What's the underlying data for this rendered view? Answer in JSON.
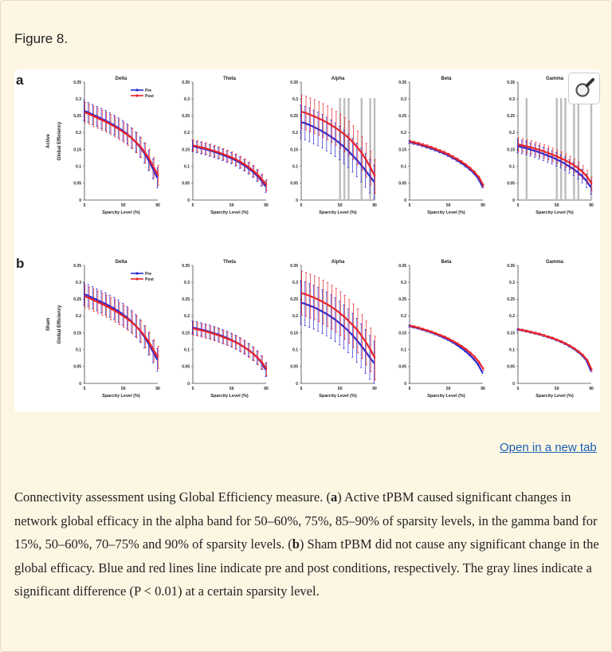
{
  "figure_label": "Figure 8.",
  "open_link": "Open in a new tab",
  "caption": {
    "s1": "Connectivity assessment using Global Efficiency measure. (",
    "a": "a",
    "s2": ") Active tPBM caused significant changes in network global efficacy in the alpha band for 50–60%, 75%, 85–90% of sparsity levels, in the gamma band for 15%, 50–60%, 70–75% and 90% of sparsity levels. (",
    "b": "b",
    "s3": ") Sham tPBM did not cause any significant change in the global efficacy. Blue and red lines line indicate pre and post conditions, respectively. The gray lines indicate a significant difference (P < 0.01) at a certain sparsity level."
  },
  "colors": {
    "pre": "#2b2bd4",
    "post": "#e8242a",
    "sig": "#bdbdbd"
  },
  "zoom_icon": "magnifier-icon",
  "chart_data": {
    "type": "line",
    "rows": [
      {
        "panel_label": "a",
        "row_label": "Active"
      },
      {
        "panel_label": "b",
        "row_label": "Sham"
      }
    ],
    "bands": [
      "Delta",
      "Theta",
      "Alpha",
      "Beta",
      "Gamma"
    ],
    "xlabel": "Sparcity Level (%)",
    "ylabel": "Global Efficiency",
    "x": [
      5,
      10,
      15,
      20,
      25,
      30,
      35,
      40,
      45,
      50,
      55,
      60,
      65,
      70,
      75,
      80,
      85,
      90
    ],
    "x_ticks": [
      "5",
      "50",
      "90"
    ],
    "ylim": [
      0,
      0.35
    ],
    "y_ticks": [
      "0",
      "0.05",
      "0.1",
      "0.15",
      "0.2",
      "0.25",
      "0.3",
      "0.35"
    ],
    "legend": [
      "Pre",
      "Post"
    ],
    "panels": [
      {
        "row": 0,
        "band": 0,
        "show_legend": true,
        "sig_x": [],
        "pre": [
          0.265,
          0.26,
          0.254,
          0.248,
          0.242,
          0.236,
          0.229,
          0.222,
          0.214,
          0.206,
          0.196,
          0.185,
          0.172,
          0.157,
          0.139,
          0.117,
          0.092,
          0.066
        ],
        "post": [
          0.26,
          0.255,
          0.249,
          0.243,
          0.237,
          0.231,
          0.224,
          0.217,
          0.209,
          0.201,
          0.192,
          0.182,
          0.17,
          0.156,
          0.14,
          0.12,
          0.096,
          0.073
        ],
        "err": 0.03
      },
      {
        "row": 0,
        "band": 1,
        "show_legend": false,
        "sig_x": [],
        "pre": [
          0.16,
          0.157,
          0.154,
          0.151,
          0.147,
          0.143,
          0.139,
          0.134,
          0.129,
          0.124,
          0.118,
          0.111,
          0.103,
          0.094,
          0.084,
          0.072,
          0.058,
          0.04
        ],
        "post": [
          0.162,
          0.159,
          0.156,
          0.153,
          0.149,
          0.145,
          0.141,
          0.136,
          0.131,
          0.126,
          0.12,
          0.113,
          0.105,
          0.096,
          0.086,
          0.074,
          0.06,
          0.044
        ],
        "err": 0.017
      },
      {
        "row": 0,
        "band": 2,
        "show_legend": false,
        "sig_x": [
          50,
          55,
          60,
          75,
          85,
          90
        ],
        "pre": [
          0.232,
          0.228,
          0.223,
          0.217,
          0.211,
          0.204,
          0.196,
          0.188,
          0.179,
          0.169,
          0.158,
          0.146,
          0.133,
          0.119,
          0.104,
          0.088,
          0.071,
          0.054
        ],
        "post": [
          0.262,
          0.258,
          0.253,
          0.248,
          0.242,
          0.236,
          0.229,
          0.221,
          0.213,
          0.204,
          0.194,
          0.183,
          0.17,
          0.155,
          0.138,
          0.118,
          0.095,
          0.07
        ],
        "err": 0.05
      },
      {
        "row": 0,
        "band": 3,
        "show_legend": false,
        "sig_x": [],
        "pre": [
          0.172,
          0.169,
          0.166,
          0.162,
          0.158,
          0.154,
          0.149,
          0.144,
          0.139,
          0.133,
          0.126,
          0.119,
          0.111,
          0.102,
          0.092,
          0.08,
          0.065,
          0.04
        ],
        "post": [
          0.174,
          0.171,
          0.168,
          0.164,
          0.16,
          0.156,
          0.151,
          0.146,
          0.141,
          0.135,
          0.128,
          0.121,
          0.113,
          0.104,
          0.094,
          0.082,
          0.067,
          0.043
        ],
        "err": 0.004
      },
      {
        "row": 0,
        "band": 4,
        "show_legend": false,
        "sig_x": [
          15,
          50,
          55,
          60,
          70,
          75,
          90
        ],
        "pre": [
          0.16,
          0.157,
          0.154,
          0.15,
          0.146,
          0.142,
          0.137,
          0.132,
          0.127,
          0.121,
          0.115,
          0.108,
          0.1,
          0.092,
          0.082,
          0.071,
          0.057,
          0.038
        ],
        "post": [
          0.165,
          0.162,
          0.159,
          0.156,
          0.152,
          0.148,
          0.144,
          0.139,
          0.134,
          0.129,
          0.123,
          0.117,
          0.11,
          0.102,
          0.093,
          0.082,
          0.068,
          0.048
        ],
        "err": 0.02
      },
      {
        "row": 1,
        "band": 0,
        "show_legend": true,
        "sig_x": [],
        "pre": [
          0.265,
          0.26,
          0.254,
          0.248,
          0.242,
          0.236,
          0.229,
          0.222,
          0.214,
          0.205,
          0.195,
          0.184,
          0.171,
          0.156,
          0.138,
          0.117,
          0.094,
          0.07
        ],
        "post": [
          0.258,
          0.253,
          0.247,
          0.241,
          0.235,
          0.229,
          0.222,
          0.215,
          0.207,
          0.199,
          0.19,
          0.18,
          0.168,
          0.154,
          0.138,
          0.119,
          0.097,
          0.077
        ],
        "err": 0.033
      },
      {
        "row": 1,
        "band": 1,
        "show_legend": false,
        "sig_x": [],
        "pre": [
          0.166,
          0.163,
          0.16,
          0.157,
          0.153,
          0.149,
          0.145,
          0.14,
          0.135,
          0.129,
          0.123,
          0.116,
          0.108,
          0.099,
          0.089,
          0.077,
          0.062,
          0.04
        ],
        "post": [
          0.163,
          0.16,
          0.157,
          0.154,
          0.15,
          0.146,
          0.142,
          0.137,
          0.132,
          0.127,
          0.121,
          0.114,
          0.106,
          0.097,
          0.087,
          0.075,
          0.061,
          0.042
        ],
        "err": 0.02
      },
      {
        "row": 1,
        "band": 2,
        "show_legend": false,
        "sig_x": [],
        "pre": [
          0.24,
          0.236,
          0.231,
          0.226,
          0.22,
          0.213,
          0.206,
          0.198,
          0.189,
          0.179,
          0.168,
          0.156,
          0.143,
          0.128,
          0.112,
          0.095,
          0.077,
          0.06
        ],
        "post": [
          0.268,
          0.264,
          0.259,
          0.254,
          0.248,
          0.241,
          0.234,
          0.226,
          0.217,
          0.207,
          0.196,
          0.184,
          0.171,
          0.156,
          0.139,
          0.12,
          0.099,
          0.075
        ],
        "err": 0.065
      },
      {
        "row": 1,
        "band": 3,
        "show_legend": false,
        "sig_x": [],
        "pre": [
          0.17,
          0.167,
          0.164,
          0.16,
          0.156,
          0.152,
          0.147,
          0.142,
          0.136,
          0.13,
          0.123,
          0.115,
          0.106,
          0.096,
          0.085,
          0.072,
          0.056,
          0.032
        ],
        "post": [
          0.171,
          0.168,
          0.165,
          0.161,
          0.157,
          0.153,
          0.148,
          0.143,
          0.138,
          0.132,
          0.125,
          0.118,
          0.11,
          0.101,
          0.09,
          0.078,
          0.063,
          0.042
        ],
        "err": 0.003
      },
      {
        "row": 1,
        "band": 4,
        "show_legend": false,
        "sig_x": [],
        "pre": [
          0.16,
          0.158,
          0.155,
          0.152,
          0.149,
          0.146,
          0.142,
          0.138,
          0.134,
          0.129,
          0.124,
          0.118,
          0.111,
          0.103,
          0.094,
          0.083,
          0.068,
          0.038
        ],
        "post": [
          0.16,
          0.158,
          0.155,
          0.152,
          0.149,
          0.146,
          0.142,
          0.138,
          0.134,
          0.129,
          0.124,
          0.118,
          0.111,
          0.103,
          0.094,
          0.083,
          0.068,
          0.04
        ],
        "err": 0.003
      }
    ]
  }
}
